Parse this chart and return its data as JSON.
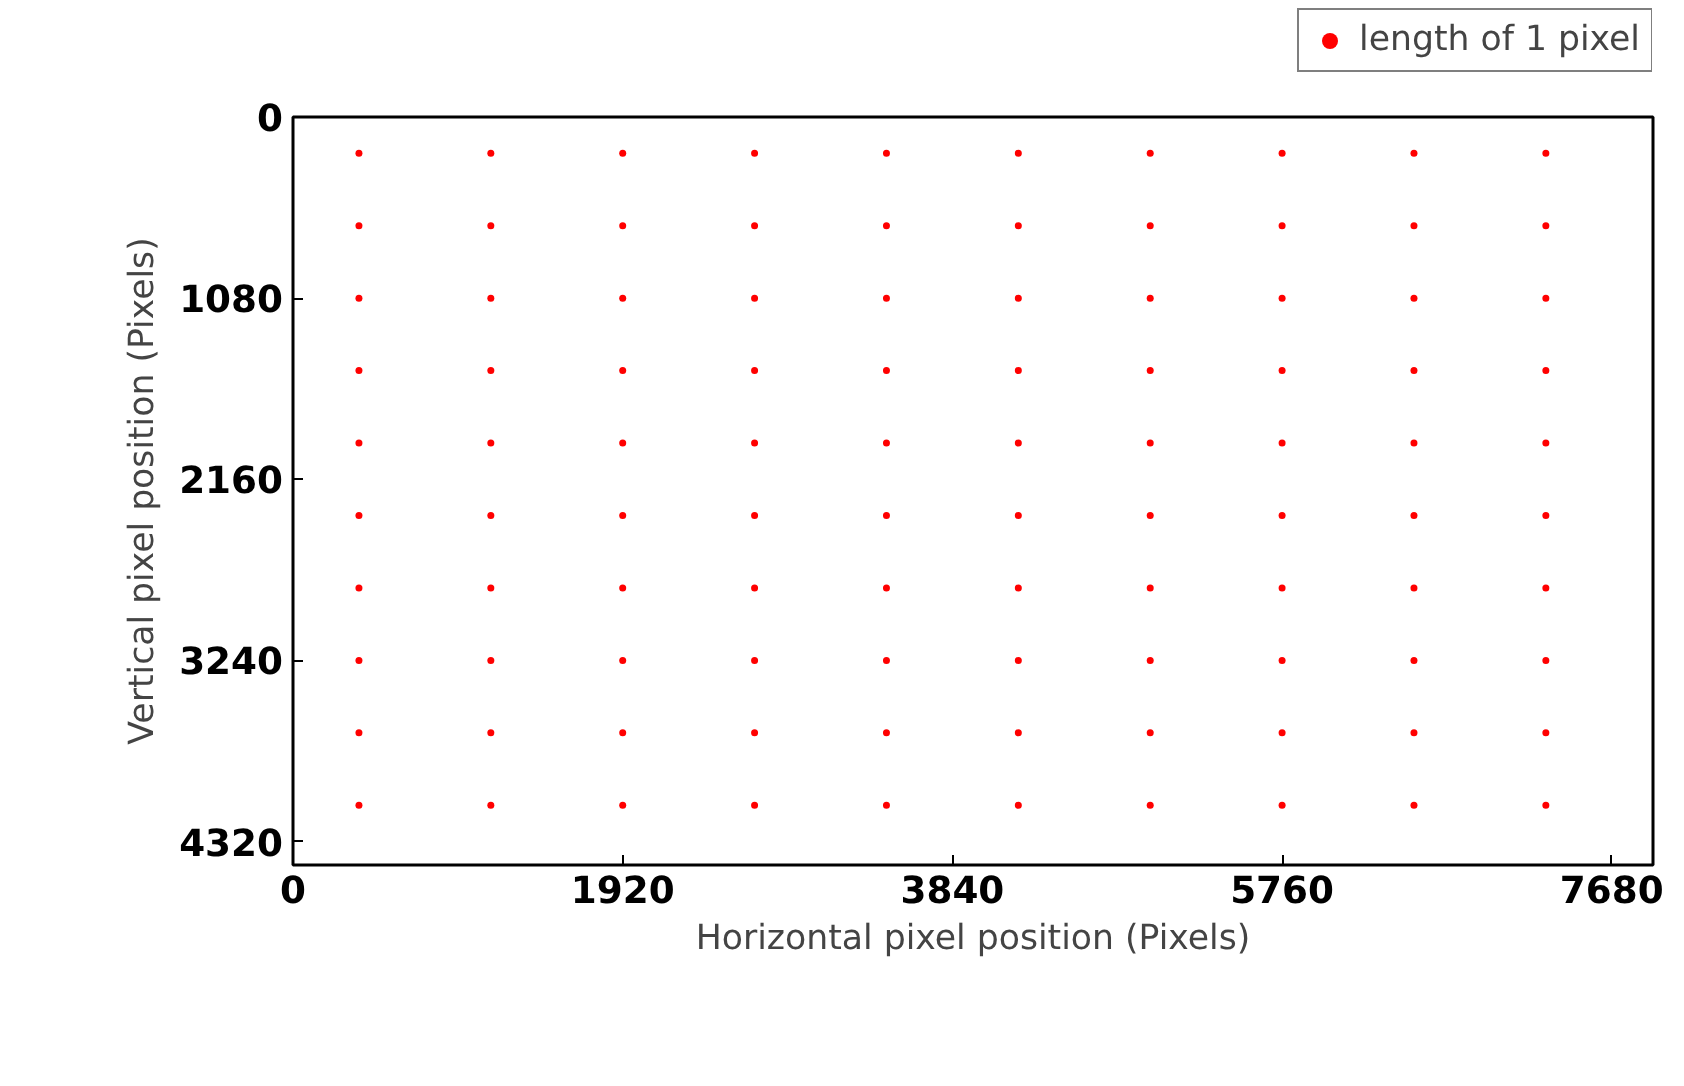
{
  "chart_data": {
    "type": "scatter",
    "xlabel": "Horizontal pixel position (Pixels)",
    "ylabel": "Vertical pixel position (Pixels)",
    "xlim": [
      0,
      7920
    ],
    "ylim": [
      4460,
      0
    ],
    "xticks": [
      0,
      1920,
      3840,
      5760,
      7680
    ],
    "yticks": [
      0,
      1080,
      2160,
      3240,
      4320
    ],
    "grid": false,
    "legend": "top right",
    "marker": "circle",
    "series": [
      {
        "name": "length of 1 pixel",
        "color": "#ff0000",
        "x": [
          384,
          1152,
          1920,
          2688,
          3456,
          4224,
          4992,
          5760,
          6528,
          7296,
          384,
          1152,
          1920,
          2688,
          3456,
          4224,
          4992,
          5760,
          6528,
          7296,
          384,
          1152,
          1920,
          2688,
          3456,
          4224,
          4992,
          5760,
          6528,
          7296,
          384,
          1152,
          1920,
          2688,
          3456,
          4224,
          4992,
          5760,
          6528,
          7296,
          384,
          1152,
          1920,
          2688,
          3456,
          4224,
          4992,
          5760,
          6528,
          7296,
          384,
          1152,
          1920,
          2688,
          3456,
          4224,
          4992,
          5760,
          6528,
          7296,
          384,
          1152,
          1920,
          2688,
          3456,
          4224,
          4992,
          5760,
          6528,
          7296,
          384,
          1152,
          1920,
          2688,
          3456,
          4224,
          4992,
          5760,
          6528,
          7296,
          384,
          1152,
          1920,
          2688,
          3456,
          4224,
          4992,
          5760,
          6528,
          7296,
          384,
          1152,
          1920,
          2688,
          3456,
          4224,
          4992,
          5760,
          6528,
          7296
        ],
        "values": [
          216,
          216,
          216,
          216,
          216,
          216,
          216,
          216,
          216,
          216,
          648,
          648,
          648,
          648,
          648,
          648,
          648,
          648,
          648,
          648,
          1080,
          1080,
          1080,
          1080,
          1080,
          1080,
          1080,
          1080,
          1080,
          1080,
          1512,
          1512,
          1512,
          1512,
          1512,
          1512,
          1512,
          1512,
          1512,
          1512,
          1944,
          1944,
          1944,
          1944,
          1944,
          1944,
          1944,
          1944,
          1944,
          1944,
          2376,
          2376,
          2376,
          2376,
          2376,
          2376,
          2376,
          2376,
          2376,
          2376,
          2808,
          2808,
          2808,
          2808,
          2808,
          2808,
          2808,
          2808,
          2808,
          2808,
          3240,
          3240,
          3240,
          3240,
          3240,
          3240,
          3240,
          3240,
          3240,
          3240,
          3672,
          3672,
          3672,
          3672,
          3672,
          3672,
          3672,
          3672,
          3672,
          3672,
          4104,
          4104,
          4104,
          4104,
          4104,
          4104,
          4104,
          4104,
          4104,
          4104
        ]
      }
    ]
  }
}
